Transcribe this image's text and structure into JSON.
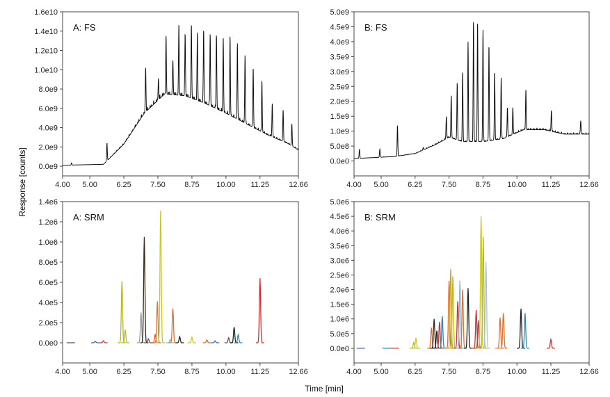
{
  "figure": {
    "ylabel": "Response [counts]",
    "xlabel": "Time [min]"
  },
  "chart_data": [
    {
      "type": "line",
      "title": "A: FS",
      "xlim": [
        4.0,
        12.66
      ],
      "ylim": [
        -1000000000.0,
        16000000000.0
      ],
      "x_ticks": [
        4.0,
        5.0,
        6.25,
        7.5,
        8.75,
        10.0,
        11.25,
        12.66
      ],
      "x_tick_labels": [
        "4.00",
        "5.00",
        "6.25",
        "7.50",
        "8.75",
        "10.00",
        "11.25",
        "12.66"
      ],
      "y_ticks": [
        0,
        2000000000.0,
        4000000000.0,
        6000000000.0,
        8000000000.0,
        10000000000.0,
        12000000000.0,
        14000000000.0,
        16000000000.0
      ],
      "y_tick_labels": [
        "0.0e9",
        "2.0e9",
        "4.0e9",
        "6.0e9",
        "8.0e9",
        "1.0e10",
        "1.2e10",
        "1.4e10",
        "1.6e10"
      ],
      "series": [
        {
          "name": "FS",
          "color": "#111111",
          "baseline": [
            [
              4.0,
              100000000.0
            ],
            [
              5.5,
              200000000.0
            ],
            [
              6.25,
              2300000000.0
            ],
            [
              7.0,
              5500000000.0
            ],
            [
              7.75,
              7500000000.0
            ],
            [
              8.5,
              7300000000.0
            ],
            [
              9.25,
              6500000000.0
            ],
            [
              10.0,
              5500000000.0
            ],
            [
              10.75,
              4400000000.0
            ],
            [
              11.5,
              3300000000.0
            ],
            [
              12.25,
              2400000000.0
            ],
            [
              12.66,
              1700000000.0
            ]
          ],
          "peaks": [
            [
              4.33,
              350000000.0
            ],
            [
              5.63,
              2400000000.0
            ],
            [
              7.05,
              10200000000.0
            ],
            [
              7.52,
              9100000000.0
            ],
            [
              7.8,
              13200000000.0
            ],
            [
              8.05,
              11000000000.0
            ],
            [
              8.27,
              14700000000.0
            ],
            [
              8.5,
              13800000000.0
            ],
            [
              8.73,
              14700000000.0
            ],
            [
              8.95,
              13900000000.0
            ],
            [
              9.18,
              14200000000.0
            ],
            [
              9.42,
              13700000000.0
            ],
            [
              9.65,
              13700000000.0
            ],
            [
              9.9,
              13300000000.0
            ],
            [
              10.15,
              13300000000.0
            ],
            [
              10.42,
              12600000000.0
            ],
            [
              10.7,
              11500000000.0
            ],
            [
              11.0,
              10200000000.0
            ],
            [
              11.32,
              8800000000.0
            ],
            [
              11.7,
              6500000000.0
            ],
            [
              12.1,
              5800000000.0
            ],
            [
              12.42,
              4400000000.0
            ]
          ]
        }
      ]
    },
    {
      "type": "line",
      "title": "B: FS",
      "xlim": [
        4.0,
        12.66
      ],
      "ylim": [
        -500000000.0,
        5000000000.0
      ],
      "x_ticks": [
        4.0,
        5.0,
        6.25,
        7.5,
        8.75,
        10.0,
        11.25,
        12.66
      ],
      "x_tick_labels": [
        "4.00",
        "5.00",
        "6.25",
        "7.50",
        "8.75",
        "10.00",
        "11.25",
        "12.66"
      ],
      "y_ticks": [
        0,
        500000000.0,
        1000000000.0,
        1500000000.0,
        2000000000.0,
        2500000000.0,
        3000000000.0,
        3500000000.0,
        4000000000.0,
        4500000000.0,
        5000000000.0
      ],
      "y_tick_labels": [
        "0.0e0",
        "5.0e8",
        "1.0e9",
        "1.5e9",
        "2.0e9",
        "2.5e9",
        "3.0e9",
        "3.5e9",
        "4.0e9",
        "4.5e9",
        "5.0e9"
      ],
      "series": [
        {
          "name": "FS",
          "color": "#111111",
          "baseline": [
            [
              4.0,
              80000000.0
            ],
            [
              5.5,
              150000000.0
            ],
            [
              6.25,
              250000000.0
            ],
            [
              7.0,
              550000000.0
            ],
            [
              7.5,
              800000000.0
            ],
            [
              8.0,
              650000000.0
            ],
            [
              8.75,
              650000000.0
            ],
            [
              9.5,
              750000000.0
            ],
            [
              10.25,
              1050000000.0
            ],
            [
              11.0,
              1050000000.0
            ],
            [
              11.75,
              900000000.0
            ],
            [
              12.66,
              900000000.0
            ]
          ],
          "peaks": [
            [
              4.2,
              400000000.0
            ],
            [
              4.95,
              400000000.0
            ],
            [
              5.6,
              1200000000.0
            ],
            [
              6.55,
              450000000.0
            ],
            [
              7.4,
              1500000000.0
            ],
            [
              7.58,
              2200000000.0
            ],
            [
              7.8,
              2600000000.0
            ],
            [
              8.0,
              3000000000.0
            ],
            [
              8.2,
              4000000000.0
            ],
            [
              8.4,
              4700000000.0
            ],
            [
              8.55,
              4700000000.0
            ],
            [
              8.75,
              4400000000.0
            ],
            [
              8.97,
              3900000000.0
            ],
            [
              9.18,
              3000000000.0
            ],
            [
              9.42,
              2800000000.0
            ],
            [
              9.65,
              1800000000.0
            ],
            [
              9.85,
              1800000000.0
            ],
            [
              10.33,
              2400000000.0
            ],
            [
              11.27,
              1700000000.0
            ],
            [
              12.35,
              1350000000.0
            ]
          ]
        }
      ]
    },
    {
      "type": "line",
      "title": "A: SRM",
      "xlim": [
        4.0,
        12.66
      ],
      "ylim": [
        -200000.0,
        1400000.0
      ],
      "x_ticks": [
        4.0,
        5.0,
        6.25,
        7.5,
        8.75,
        10.0,
        11.25,
        12.66
      ],
      "x_tick_labels": [
        "4.00",
        "5.00",
        "6.25",
        "7.50",
        "8.75",
        "10.00",
        "11.25",
        "12.66"
      ],
      "y_ticks": [
        0,
        200000.0,
        400000.0,
        600000.0,
        800000.0,
        1000000.0,
        1200000.0,
        1400000.0
      ],
      "y_tick_labels": [
        "0.0e0",
        "2.0e5",
        "4.0e5",
        "6.0e5",
        "8.0e5",
        "1.0e6",
        "1.2e6",
        "1.4e6"
      ],
      "peaks": [
        {
          "t": 4.3,
          "h": 0.0,
          "color": "#555555"
        },
        {
          "t": 5.2,
          "h": 15000.0,
          "color": "#3b6db0"
        },
        {
          "t": 5.5,
          "h": 20000.0,
          "color": "#c03a3a"
        },
        {
          "t": 6.18,
          "h": 610000.0,
          "color": "#b8b820"
        },
        {
          "t": 6.3,
          "h": 130000.0,
          "color": "#b8b820"
        },
        {
          "t": 6.88,
          "h": 300000.0,
          "color": "#9aa0a6"
        },
        {
          "t": 7.0,
          "h": 1050000.0,
          "color": "#3a2a1a"
        },
        {
          "t": 7.15,
          "h": 40000.0,
          "color": "#555555"
        },
        {
          "t": 7.4,
          "h": 80000.0,
          "color": "#e05020"
        },
        {
          "t": 7.48,
          "h": 410000.0,
          "color": "#e07030"
        },
        {
          "t": 7.6,
          "h": 1310000.0,
          "color": "#c8c820"
        },
        {
          "t": 7.95,
          "h": 35000.0,
          "color": "#8fb8d8"
        },
        {
          "t": 8.05,
          "h": 340000.0,
          "color": "#e07030"
        },
        {
          "t": 8.3,
          "h": 60000.0,
          "color": "#222222"
        },
        {
          "t": 8.75,
          "h": 55000.0,
          "color": "#c8c820"
        },
        {
          "t": 9.3,
          "h": 30000.0,
          "color": "#e07030"
        },
        {
          "t": 9.6,
          "h": 20000.0,
          "color": "#3b6db0"
        },
        {
          "t": 10.1,
          "h": 50000.0,
          "color": "#555555"
        },
        {
          "t": 10.3,
          "h": 155000.0,
          "color": "#222222"
        },
        {
          "t": 10.45,
          "h": 80000.0,
          "color": "#2a8ab0"
        },
        {
          "t": 11.25,
          "h": 640000.0,
          "color": "#d03030"
        }
      ]
    },
    {
      "type": "line",
      "title": "B: SRM",
      "xlim": [
        4.0,
        12.66
      ],
      "ylim": [
        -500000.0,
        5000000.0
      ],
      "x_ticks": [
        4.0,
        5.0,
        6.25,
        7.5,
        8.75,
        10.0,
        11.25,
        12.66
      ],
      "x_tick_labels": [
        "4.00",
        "5.00",
        "6.25",
        "7.50",
        "8.75",
        "10.00",
        "11.25",
        "12.66"
      ],
      "y_ticks": [
        0,
        500000.0,
        1000000.0,
        1500000.0,
        2000000.0,
        2500000.0,
        3000000.0,
        3500000.0,
        4000000.0,
        4500000.0,
        5000000.0
      ],
      "y_tick_labels": [
        "0.0e0",
        "5.0e5",
        "1.0e6",
        "1.5e6",
        "2.0e6",
        "2.5e6",
        "3.0e6",
        "3.5e6",
        "4.0e6",
        "4.5e6",
        "5.0e6"
      ],
      "peaks": [
        {
          "t": 4.25,
          "h": 0.0,
          "color": "#3b6db0"
        },
        {
          "t": 5.2,
          "h": 0.0,
          "color": "#2a8ab0"
        },
        {
          "t": 5.5,
          "h": 0.0,
          "color": "#c03a3a"
        },
        {
          "t": 6.2,
          "h": 200000.0,
          "color": "#b8b820"
        },
        {
          "t": 6.28,
          "h": 350000.0,
          "color": "#c8c820"
        },
        {
          "t": 6.85,
          "h": 700000.0,
          "color": "#e07030"
        },
        {
          "t": 6.95,
          "h": 1000000.0,
          "color": "#3a2a1a"
        },
        {
          "t": 7.05,
          "h": 600000.0,
          "color": "#222222"
        },
        {
          "t": 7.15,
          "h": 900000.0,
          "color": "#c03a3a"
        },
        {
          "t": 7.25,
          "h": 1100000.0,
          "color": "#2a8ab0"
        },
        {
          "t": 7.5,
          "h": 2300000.0,
          "color": "#e07030"
        },
        {
          "t": 7.56,
          "h": 2700000.0,
          "color": "#c8a820"
        },
        {
          "t": 7.64,
          "h": 2450000.0,
          "color": "#b8b820"
        },
        {
          "t": 7.82,
          "h": 1600000.0,
          "color": "#c03a3a"
        },
        {
          "t": 7.9,
          "h": 2300000.0,
          "color": "#8fb8d8"
        },
        {
          "t": 8.0,
          "h": 2000000.0,
          "color": "#e07030"
        },
        {
          "t": 8.2,
          "h": 2050000.0,
          "color": "#222222"
        },
        {
          "t": 8.5,
          "h": 1300000.0,
          "color": "#c03a3a"
        },
        {
          "t": 8.58,
          "h": 950000.0,
          "color": "#c03a3a"
        },
        {
          "t": 8.68,
          "h": 4500000.0,
          "color": "#c8c820"
        },
        {
          "t": 8.76,
          "h": 3800000.0,
          "color": "#b8b820"
        },
        {
          "t": 8.86,
          "h": 2950000.0,
          "color": "#a8c8d8"
        },
        {
          "t": 9.38,
          "h": 1050000.0,
          "color": "#e07030"
        },
        {
          "t": 9.5,
          "h": 1200000.0,
          "color": "#e07030"
        },
        {
          "t": 10.15,
          "h": 1350000.0,
          "color": "#222222"
        },
        {
          "t": 10.3,
          "h": 1200000.0,
          "color": "#2a8ab0"
        },
        {
          "t": 11.25,
          "h": 300000.0,
          "color": "#d03030"
        }
      ]
    }
  ]
}
